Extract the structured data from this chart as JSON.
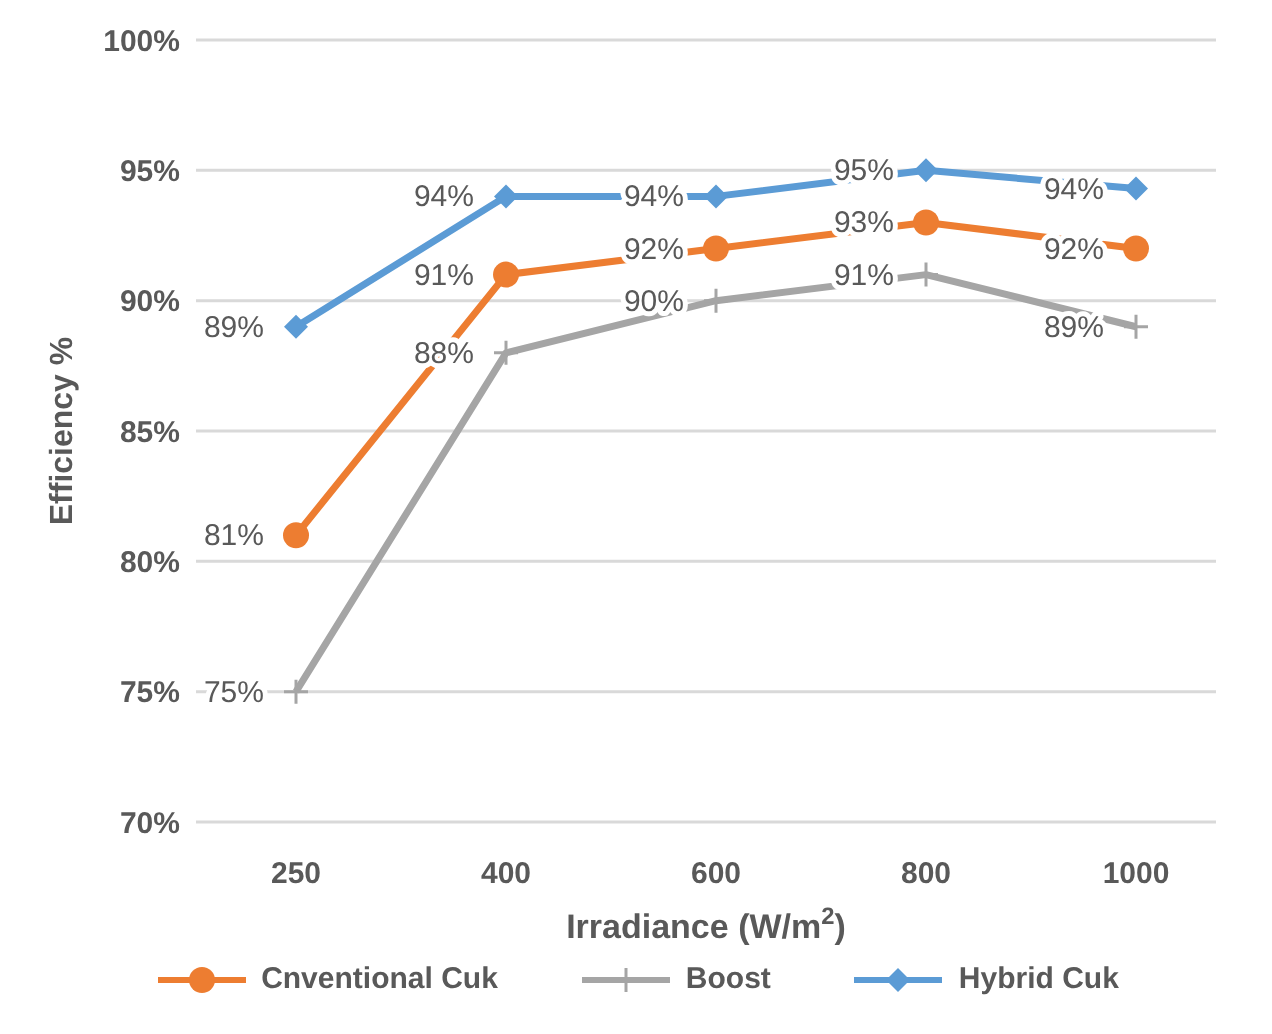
{
  "chart_data": {
    "type": "line",
    "categories": [
      "250",
      "400",
      "600",
      "800",
      "1000"
    ],
    "series": [
      {
        "name": "Cnventional Cuk",
        "color": "#ed7d31",
        "marker": "circle",
        "values": [
          81,
          91,
          92,
          93,
          92
        ],
        "value_labels": [
          "81%",
          "91%",
          "92%",
          "93%",
          "92%"
        ]
      },
      {
        "name": "Boost",
        "color": "#a5a5a5",
        "marker": "cross",
        "values": [
          75,
          88,
          90,
          91,
          89
        ],
        "value_labels": [
          "75%",
          "88%",
          "90%",
          "91%",
          "89%"
        ]
      },
      {
        "name": "Hybrid Cuk",
        "color": "#5b9bd5",
        "marker": "diamond",
        "values": [
          89,
          94,
          94,
          95,
          94.3
        ],
        "value_labels": [
          "89%",
          "94%",
          "94%",
          "95%",
          "94%"
        ]
      }
    ],
    "xlabel": "Irradiance (W/m$^{2}$)",
    "ylabel": "Efficiency %",
    "ylim": [
      70,
      100
    ],
    "yticks": [
      {
        "value": 70,
        "label": "70%"
      },
      {
        "value": 75,
        "label": "75%"
      },
      {
        "value": 80,
        "label": "80%"
      },
      {
        "value": 85,
        "label": "85%"
      },
      {
        "value": 90,
        "label": "90%"
      },
      {
        "value": 95,
        "label": "95%"
      },
      {
        "value": 100,
        "label": "100%"
      }
    ],
    "grid": "y",
    "legend": "bottom",
    "line_style": "solid"
  }
}
